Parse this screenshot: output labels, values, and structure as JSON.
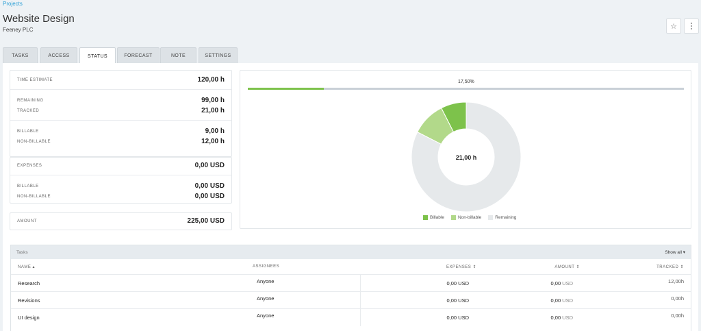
{
  "breadcrumb": "Projects",
  "header": {
    "title": "Website Design",
    "subtitle": "Feeney PLC",
    "star_icon": "☆"
  },
  "tabs": [
    {
      "label": "TASKS"
    },
    {
      "label": "ACCESS"
    },
    {
      "label": "STATUS",
      "active": true
    },
    {
      "label": "FORECAST"
    },
    {
      "label": "NOTE"
    },
    {
      "label": "SETTINGS"
    }
  ],
  "stats": {
    "time_estimate": {
      "label": "TIME ESTIMATE",
      "value": "120,00 h"
    },
    "remaining": {
      "label": "REMAINING",
      "value": "99,00 h"
    },
    "tracked": {
      "label": "TRACKED",
      "value": "21,00 h"
    },
    "billable_time": {
      "label": "BILLABLE",
      "value": "9,00 h"
    },
    "non_billable_time": {
      "label": "NON-BILLABLE",
      "value": "12,00 h"
    },
    "expenses": {
      "label": "EXPENSES",
      "value": "0,00 USD"
    },
    "billable_expenses": {
      "label": "BILLABLE",
      "value": "0,00 USD"
    },
    "non_billable_expenses": {
      "label": "NON-BILLABLE",
      "value": "0,00 USD"
    },
    "amount": {
      "label": "AMOUNT",
      "value": "225,00 USD"
    }
  },
  "progress": {
    "label": "17,50%",
    "fraction": 0.175
  },
  "donut": {
    "center_label": "21,00 h",
    "segments": [
      {
        "name": "Billable",
        "value": 9,
        "color": "#7dc24b"
      },
      {
        "name": "Non-billable",
        "value": 12,
        "color": "#b2d98a"
      },
      {
        "name": "Remaining",
        "value": 99,
        "color": "#e6e9eb"
      }
    ]
  },
  "tasks_table": {
    "title": "Tasks",
    "show_all": "Show all ▾",
    "columns": {
      "name": "NAME ▴",
      "assignees": "ASSIGNEES",
      "expenses": "EXPENSES ⇕",
      "amount": "AMOUNT ⇕",
      "tracked": "TRACKED ⇕"
    },
    "rows": [
      {
        "name": "Research",
        "assignees": "Anyone",
        "expenses": "0,00 USD",
        "amount": "0,00",
        "amount_unit": "USD",
        "tracked": "12,00h"
      },
      {
        "name": "Revisions",
        "assignees": "Anyone",
        "expenses": "0,00 USD",
        "amount": "0,00",
        "amount_unit": "USD",
        "tracked": "0,00h"
      },
      {
        "name": "UI design",
        "assignees": "Anyone",
        "expenses": "0,00 USD",
        "amount": "0,00",
        "amount_unit": "USD",
        "tracked": "0,00h"
      }
    ]
  }
}
